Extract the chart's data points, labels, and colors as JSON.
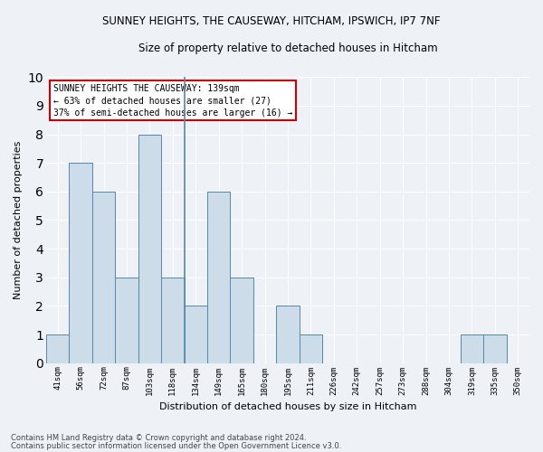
{
  "title1": "SUNNEY HEIGHTS, THE CAUSEWAY, HITCHAM, IPSWICH, IP7 7NF",
  "title2": "Size of property relative to detached houses in Hitcham",
  "xlabel": "Distribution of detached houses by size in Hitcham",
  "ylabel": "Number of detached properties",
  "bar_color": "#ccdce8",
  "bar_edge_color": "#5588aa",
  "categories": [
    "41sqm",
    "56sqm",
    "72sqm",
    "87sqm",
    "103sqm",
    "118sqm",
    "134sqm",
    "149sqm",
    "165sqm",
    "180sqm",
    "195sqm",
    "211sqm",
    "226sqm",
    "242sqm",
    "257sqm",
    "273sqm",
    "288sqm",
    "304sqm",
    "319sqm",
    "335sqm",
    "350sqm"
  ],
  "values": [
    1,
    7,
    6,
    3,
    8,
    3,
    2,
    6,
    3,
    0,
    2,
    1,
    0,
    0,
    0,
    0,
    0,
    0,
    1,
    1,
    0
  ],
  "ylim": [
    0,
    10
  ],
  "yticks": [
    0,
    1,
    2,
    3,
    4,
    5,
    6,
    7,
    8,
    9,
    10
  ],
  "annotation_text": "SUNNEY HEIGHTS THE CAUSEWAY: 139sqm\n← 63% of detached houses are smaller (27)\n37% of semi-detached houses are larger (16) →",
  "annotation_box_color": "#ffffff",
  "annotation_box_edge_color": "#cc0000",
  "footer1": "Contains HM Land Registry data © Crown copyright and database right 2024.",
  "footer2": "Contains public sector information licensed under the Open Government Licence v3.0.",
  "background_color": "#eef2f7",
  "grid_color": "#ffffff",
  "vline_color": "#5588aa",
  "vline_x_index": 6
}
